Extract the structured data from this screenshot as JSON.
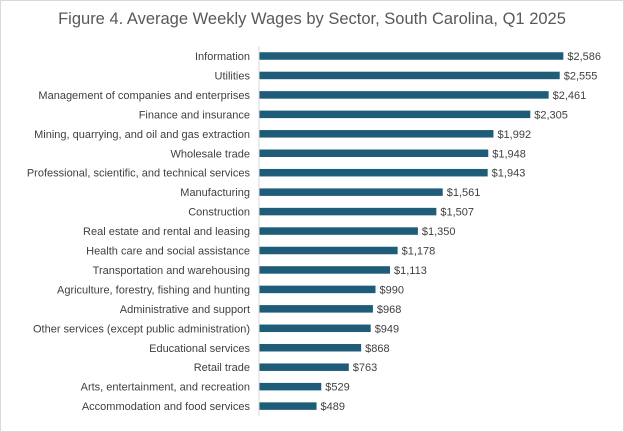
{
  "chart_data": {
    "type": "bar",
    "orientation": "horizontal",
    "title": "Figure 4. Average Weekly Wages by Sector, South Carolina, Q1 2025",
    "xlabel": "",
    "ylabel": "",
    "xlim": [
      0,
      2600
    ],
    "grid": false,
    "legend": "none",
    "bar_color": "#1f5c7a",
    "categories": [
      "Information",
      "Utilities",
      "Management of companies and enterprises",
      "Finance and insurance",
      "Mining, quarrying, and oil and gas extraction",
      "Wholesale trade",
      "Professional, scientific, and technical services",
      "Manufacturing",
      "Construction",
      "Real estate and rental and leasing",
      "Health care and social assistance",
      "Transportation and warehousing",
      "Agriculture, forestry, fishing and hunting",
      "Administrative and support",
      "Other services (except public administration)",
      "Educational services",
      "Retail trade",
      "Arts, entertainment, and recreation",
      "Accommodation and food services"
    ],
    "values": [
      2586,
      2555,
      2461,
      2305,
      1992,
      1948,
      1943,
      1561,
      1507,
      1350,
      1178,
      1113,
      990,
      968,
      949,
      868,
      763,
      529,
      489
    ],
    "data_labels": [
      "$2,586",
      "$2,555",
      "$2,461",
      "$2,305",
      "$1,992",
      "$1,948",
      "$1,943",
      "$1,561",
      "$1,507",
      "$1,350",
      "$1,178",
      "$1,113",
      "$990",
      "$968",
      "$949",
      "$868",
      "$763",
      "$529",
      "$489"
    ]
  }
}
